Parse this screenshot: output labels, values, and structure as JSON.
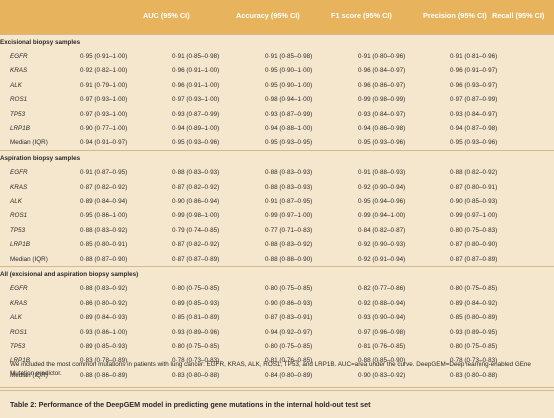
{
  "columns": [
    "AUC (95% CI)",
    "Accuracy (95% CI)",
    "F1 score (95% CI)",
    "Precision (95% CI)",
    "Recall (95% CI)"
  ],
  "sections": [
    {
      "title": "Excisional biopsy samples",
      "rows": [
        {
          "gene": "EGFR",
          "italic": true,
          "values": [
            "0·95 (0·91–1·00)",
            "0·91 (0·85–0·98)",
            "0·91 (0·85–0·98)",
            "0·91 (0·80–0·96)",
            "0·91 (0·81–0·96)"
          ]
        },
        {
          "gene": "KRAS",
          "italic": true,
          "values": [
            "0·92 (0·82–1·00)",
            "0·96 (0·91–1·00)",
            "0·95 (0·90–1·00)",
            "0·96 (0·84–0·97)",
            "0·96 (0·91–0·97)"
          ]
        },
        {
          "gene": "ALK",
          "italic": true,
          "values": [
            "0·91 (0·79–1·00)",
            "0·96 (0·91–1·00)",
            "0·95 (0·90–1·00)",
            "0·96 (0·86–0·97)",
            "0·96 (0·93–0·97)"
          ]
        },
        {
          "gene": "ROS1",
          "italic": true,
          "values": [
            "0·97 (0·93–1·00)",
            "0·97 (0·93–1·00)",
            "0·98 (0·94–1·00)",
            "0·99 (0·98–0·99)",
            "0·97 (0·87–0·99)"
          ]
        },
        {
          "gene": "TP53",
          "italic": true,
          "values": [
            "0·97 (0·93–1·00)",
            "0·93 (0·87–0·99)",
            "0·93 (0·87–0·99)",
            "0·93 (0·84–0·97)",
            "0·93 (0·84–0·97)"
          ]
        },
        {
          "gene": "LRP1B",
          "italic": true,
          "values": [
            "0·90 (0·77–1·00)",
            "0·94 (0·89–1·00)",
            "0·94 (0·88–1·00)",
            "0·94 (0·86–0·98)",
            "0·94 (0·87–0·98)"
          ]
        },
        {
          "gene": "Median (IQR)",
          "italic": false,
          "values": [
            "0·94 (0·91–0·97)",
            "0·95 (0·93–0·96)",
            "0·95 (0·93–0·95)",
            "0·95 (0·93–0·96)",
            "0·95 (0·93–0·96)"
          ]
        }
      ]
    },
    {
      "title": "Aspiration biopsy samples",
      "rows": [
        {
          "gene": "EGFR",
          "italic": true,
          "values": [
            "0·91 (0·87–0·95)",
            "0·88 (0·83–0·93)",
            "0·88 (0·83–0·93)",
            "0·91 (0·88–0·93)",
            "0·88 (0·82–0·92)"
          ]
        },
        {
          "gene": "KRAS",
          "italic": true,
          "values": [
            "0·87 (0·82–0·92)",
            "0·87 (0·82–0·92)",
            "0·88 (0·83–0·93)",
            "0·92 (0·90–0·94)",
            "0·87 (0·80–0·91)"
          ]
        },
        {
          "gene": "ALK",
          "italic": true,
          "values": [
            "0·89 (0·84–0·94)",
            "0·90 (0·86–0·94)",
            "0·91 (0·87–0·95)",
            "0·95 (0·94–0·96)",
            "0·90 (0·85–0·93)"
          ]
        },
        {
          "gene": "ROS1",
          "italic": true,
          "values": [
            "0·95 (0·86–1·00)",
            "0·99 (0·98–1·00)",
            "0·99 (0·97–1·00)",
            "0·99 (0·94–1·00)",
            "0·99 (0·97–1·00)"
          ]
        },
        {
          "gene": "TP53",
          "italic": true,
          "values": [
            "0·88 (0·83–0·92)",
            "0·79 (0·74–0·85)",
            "0·77 (0·71–0·83)",
            "0·84 (0·82–0·87)",
            "0·80 (0·75–0·83)"
          ]
        },
        {
          "gene": "LRP1B",
          "italic": true,
          "values": [
            "0·85 (0·80–0·91)",
            "0·87 (0·82–0·92)",
            "0·88 (0·83–0·92)",
            "0·92 (0·90–0·93)",
            "0·87 (0·80–0·90)"
          ]
        },
        {
          "gene": "Median (IQR)",
          "italic": false,
          "values": [
            "0·88 (0·87–0·90)",
            "0·87 (0·87–0·89)",
            "0·88 (0·88–0·90)",
            "0·92 (0·91–0·94)",
            "0·87 (0·87–0·89)"
          ]
        }
      ]
    },
    {
      "title": "All (excisional and aspiration biopsy samples)",
      "rows": [
        {
          "gene": "EGFR",
          "italic": true,
          "values": [
            "0·88 (0·83–0·92)",
            "0·80 (0·75–0·85)",
            "0·80 (0·75–0·85)",
            "0·82 (0·77–0·86)",
            "0·80 (0·75–0·85)"
          ]
        },
        {
          "gene": "KRAS",
          "italic": true,
          "values": [
            "0·86 (0·80–0·92)",
            "0·89 (0·85–0·93)",
            "0·90 (0·86–0·93)",
            "0·92 (0·88–0·94)",
            "0·89 (0·84–0·92)"
          ]
        },
        {
          "gene": "ALK",
          "italic": true,
          "values": [
            "0·89 (0·84–0·93)",
            "0·85 (0·81–0·89)",
            "0·87 (0·83–0·91)",
            "0·93 (0·90–0·94)",
            "0·85 (0·80–0·89)"
          ]
        },
        {
          "gene": "ROS1",
          "italic": true,
          "values": [
            "0·93 (0·86–1·00)",
            "0·93 (0·89–0·96)",
            "0·94 (0·92–0·97)",
            "0·97 (0·96–0·98)",
            "0·93 (0·89–0·95)"
          ]
        },
        {
          "gene": "TP53",
          "italic": true,
          "values": [
            "0·89 (0·85–0·93)",
            "0·80 (0·75–0·85)",
            "0·80 (0·75–0·85)",
            "0·81 (0·76–0·85)",
            "0·80 (0·75–0·85)"
          ]
        },
        {
          "gene": "LRP1B",
          "italic": true,
          "values": [
            "0·83 (0·78–0·89)",
            "0·78 (0·73–0·83)",
            "0·81 (0·76–0·85)",
            "0·88 (0·85–0·90)",
            "0·78 (0·73–0·83)"
          ]
        },
        {
          "gene": "Median (IQR)",
          "italic": false,
          "values": [
            "0·88 (0·86–0·89)",
            "0·83 (0·80–0·88)",
            "0·84 (0·80–0·89)",
            "0·90 (0·83–0·92)",
            "0·83 (0·80–0·88)"
          ]
        }
      ]
    }
  ],
  "footnote": "We included the most common mutations in patients with lung cancer: EGFR, KRAS, ALK, ROS1, TP53, and LRP1B. AUC=area under the curve. DeepGEM=Deep learning-enabled GEne Mutation predictor.",
  "caption": "Table 2: Performance of the DeepGEM model in predicting gene mutations in the internal hold-out test set",
  "colors": {
    "header_bg": "#e8b35d",
    "page_bg": "#f5e7cd",
    "rule": "#d5b98a"
  }
}
